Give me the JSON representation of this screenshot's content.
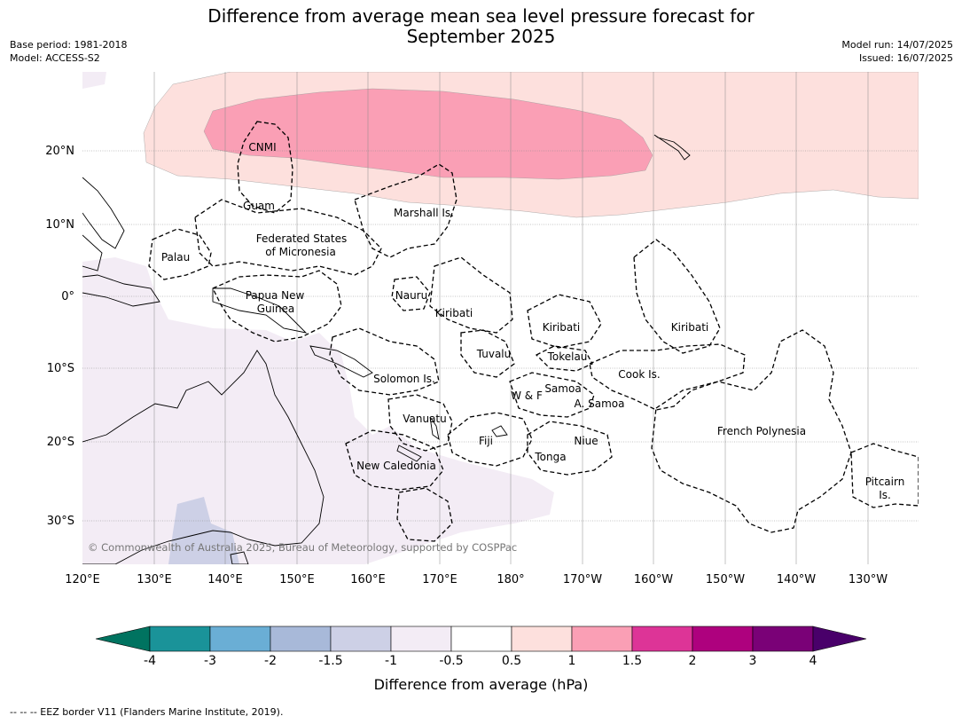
{
  "title_line1": "Difference from average mean sea level pressure forecast for",
  "title_line2": "September 2025",
  "meta_left": [
    "Base period: 1981-2018",
    "Model: ACCESS-S2"
  ],
  "meta_right": [
    "Model run: 14/07/2025",
    "Issued: 16/07/2025"
  ],
  "copyright": "© Commonwealth of Australia 2025, Bureau of Meteorology, supported by COSPPac",
  "lon_labels": [
    "120°E",
    "130°E",
    "140°E",
    "150°E",
    "160°E",
    "170°E",
    "180°",
    "170°W",
    "160°W",
    "150°W",
    "140°W",
    "130°W"
  ],
  "lat_labels": [
    "20°N",
    "10°N",
    "0°",
    "10°S",
    "20°S",
    "30°S"
  ],
  "regions": [
    "CNMI",
    "Guam",
    "Marshall Is.",
    "Palau",
    "Federated States",
    "of Micronesia",
    "Papua New",
    "Guinea",
    "Nauru",
    "Kiribati",
    "Kiribati",
    "Kiribati",
    "Tuvalu",
    "Tokelau",
    "Cook Is.",
    "Solomon Is.",
    "Samoa",
    "W & F",
    "A. Samoa",
    "Vanuatu",
    "Fiji",
    "Niue",
    "Tonga",
    "French Polynesia",
    "New Caledonia",
    "Pitcairn",
    "Is."
  ],
  "colorbar": {
    "ticks": [
      "-4",
      "-3",
      "-2",
      "-1.5",
      "-1",
      "-0.5",
      "0.5",
      "1",
      "1.5",
      "2",
      "3",
      "4"
    ],
    "colors": [
      "#1a9399",
      "#6aaed5",
      "#a8b9d9",
      "#cdd0e6",
      "#f3ecf5",
      "#ffffff",
      "#fde0dd",
      "#fa9fb5",
      "#dd3497",
      "#ae017e",
      "#7a0177"
    ],
    "extend_low": "#007360",
    "extend_high": "#49006a",
    "label": "Difference from average (hPa)"
  },
  "footnote": "--  --  -- EEZ border V11 (Flanders Marine Institute, 2019)."
}
